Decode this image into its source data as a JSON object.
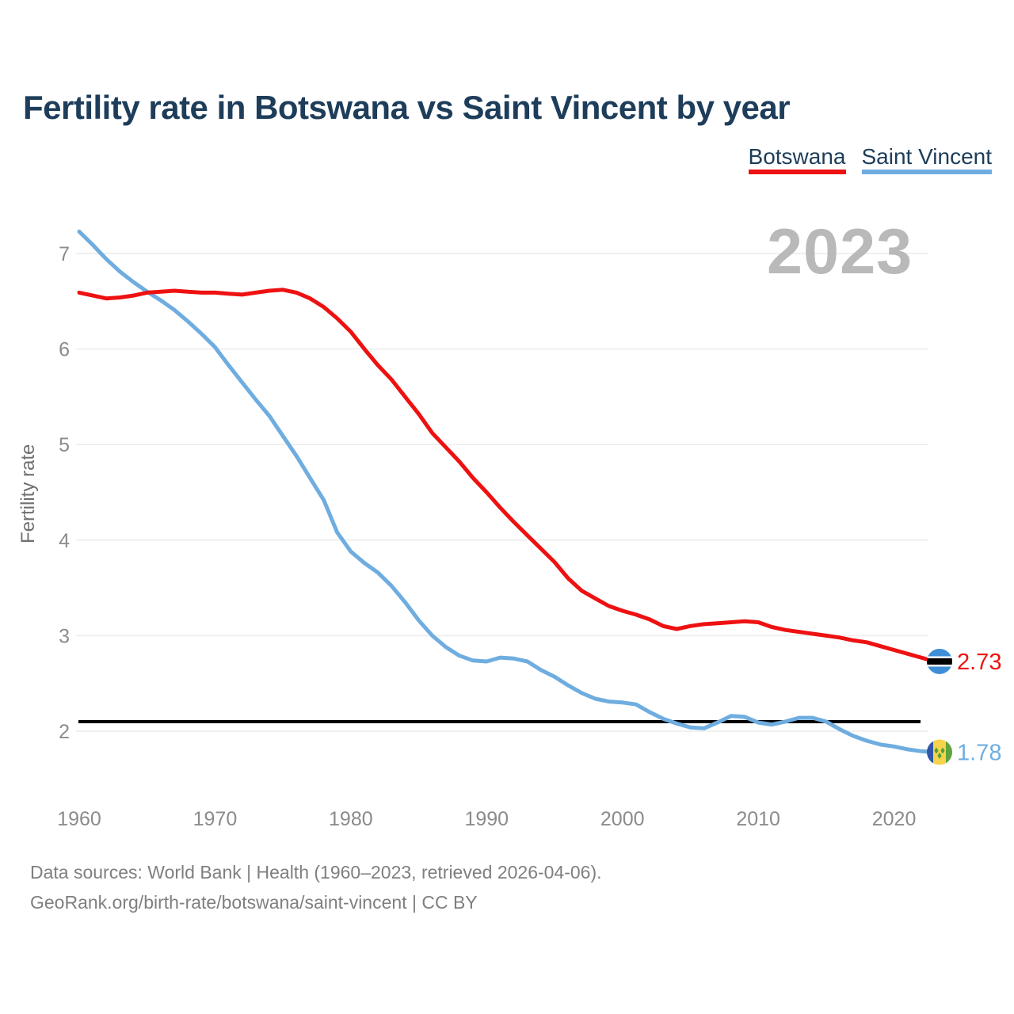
{
  "title": "Fertility rate in Botswana vs Saint Vincent by year",
  "legend": [
    {
      "label": "Botswana",
      "color": "#ee1111"
    },
    {
      "label": "Saint Vincent",
      "color": "#6fade0"
    }
  ],
  "year_watermark": "2023",
  "y_axis": {
    "label": "Fertility rate",
    "ticks": [
      7,
      6,
      5,
      4,
      3,
      2
    ]
  },
  "x_axis": {
    "ticks": [
      1960,
      1970,
      1980,
      1990,
      2000,
      2010,
      2020
    ]
  },
  "reference_line": {
    "value": 2.1,
    "color": "#000000"
  },
  "end_labels": [
    {
      "series": "Botswana",
      "value": "2.73",
      "color": "#ee1111"
    },
    {
      "series": "Saint Vincent",
      "value": "1.78",
      "color": "#6fade0"
    }
  ],
  "footer": {
    "line1": "Data sources: World Bank | Health (1960–2023, retrieved 2026-04-06).",
    "line2": "GeoRank.org/birth-rate/botswana/saint-vincent | CC BY"
  },
  "chart_data": {
    "type": "line",
    "title": "Fertility rate in Botswana vs Saint Vincent by year",
    "xlabel": "",
    "ylabel": "Fertility rate",
    "ylim": [
      1.6,
      7.4
    ],
    "xlim": [
      1960,
      2023
    ],
    "grid": "horizontal",
    "legend_position": "top-right",
    "annotations": {
      "year_watermark": "2023",
      "reference_line_y": 2.1
    },
    "x": [
      1960,
      1961,
      1962,
      1963,
      1964,
      1965,
      1966,
      1967,
      1968,
      1969,
      1970,
      1971,
      1972,
      1973,
      1974,
      1975,
      1976,
      1977,
      1978,
      1979,
      1980,
      1981,
      1982,
      1983,
      1984,
      1985,
      1986,
      1987,
      1988,
      1989,
      1990,
      1991,
      1992,
      1993,
      1994,
      1995,
      1996,
      1997,
      1998,
      1999,
      2000,
      2001,
      2002,
      2003,
      2004,
      2005,
      2006,
      2007,
      2008,
      2009,
      2010,
      2011,
      2012,
      2013,
      2014,
      2015,
      2016,
      2017,
      2018,
      2019,
      2020,
      2021,
      2022,
      2023
    ],
    "series": [
      {
        "name": "Botswana",
        "color": "#ee1111",
        "flag": "botswana",
        "end_label": "2.73",
        "values": [
          6.59,
          6.56,
          6.53,
          6.54,
          6.56,
          6.59,
          6.6,
          6.61,
          6.6,
          6.59,
          6.59,
          6.58,
          6.57,
          6.59,
          6.61,
          6.62,
          6.59,
          6.53,
          6.44,
          6.32,
          6.18,
          6.0,
          5.83,
          5.68,
          5.5,
          5.32,
          5.12,
          4.97,
          4.82,
          4.65,
          4.5,
          4.34,
          4.19,
          4.05,
          3.91,
          3.77,
          3.6,
          3.47,
          3.39,
          3.31,
          3.26,
          3.22,
          3.17,
          3.1,
          3.07,
          3.1,
          3.12,
          3.13,
          3.14,
          3.15,
          3.14,
          3.09,
          3.06,
          3.04,
          3.02,
          3.0,
          2.98,
          2.95,
          2.93,
          2.89,
          2.85,
          2.81,
          2.77,
          2.73
        ]
      },
      {
        "name": "Saint Vincent",
        "color": "#6fade0",
        "flag": "saint-vincent",
        "end_label": "1.78",
        "values": [
          7.23,
          7.09,
          6.94,
          6.81,
          6.7,
          6.6,
          6.51,
          6.41,
          6.29,
          6.16,
          6.02,
          5.83,
          5.65,
          5.47,
          5.3,
          5.09,
          4.88,
          4.65,
          4.42,
          4.08,
          3.88,
          3.76,
          3.66,
          3.52,
          3.35,
          3.16,
          3.0,
          2.88,
          2.79,
          2.74,
          2.73,
          2.77,
          2.76,
          2.73,
          2.64,
          2.57,
          2.48,
          2.4,
          2.34,
          2.31,
          2.3,
          2.28,
          2.2,
          2.13,
          2.08,
          2.04,
          2.03,
          2.09,
          2.16,
          2.15,
          2.09,
          2.07,
          2.1,
          2.14,
          2.14,
          2.1,
          2.02,
          1.95,
          1.9,
          1.86,
          1.84,
          1.81,
          1.79,
          1.78
        ]
      }
    ]
  }
}
